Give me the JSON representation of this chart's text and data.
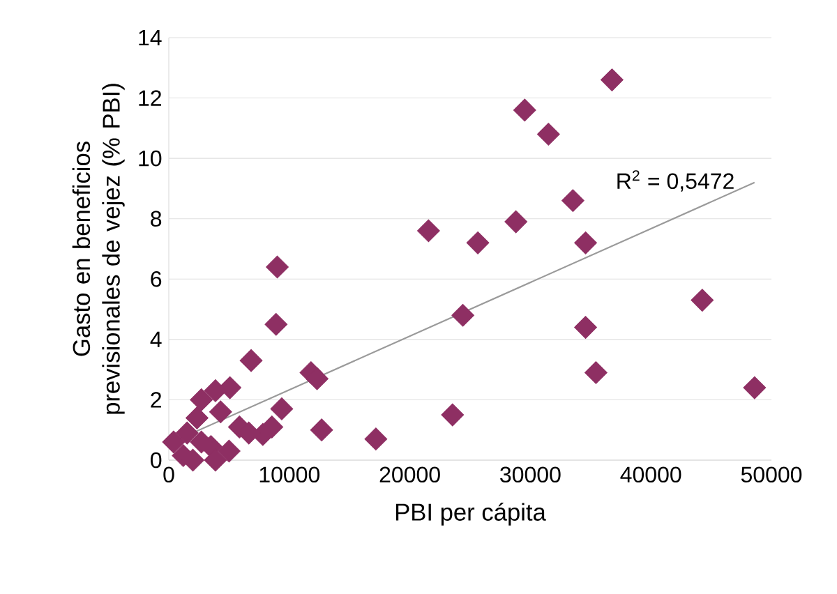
{
  "chart_data": {
    "type": "scatter",
    "xlabel": "PBI per cápita",
    "ylabel": "Gasto en beneficios previsionales de vejez (% PBI)",
    "xlim": [
      0,
      50000
    ],
    "ylim": [
      0,
      14
    ],
    "xticks": [
      0,
      10000,
      20000,
      30000,
      40000,
      50000
    ],
    "yticks": [
      0,
      2,
      4,
      6,
      8,
      10,
      12,
      14
    ],
    "grid": "y",
    "marker": "diamond",
    "series": [
      {
        "color": "#8e2f63",
        "x": [
          36770,
          29530,
          31500,
          33530,
          28800,
          21550,
          25640,
          34580,
          24400,
          34580,
          35440,
          44260,
          48600,
          23540,
          9000,
          8900,
          11800,
          12300,
          6830,
          5070,
          3870,
          2700,
          9370,
          4300,
          12680,
          17180,
          7800,
          400,
          3500,
          3870,
          1200,
          5860,
          2340,
          1520,
          6640,
          8550,
          2700,
          5000,
          2000
        ],
        "values": [
          12.6,
          11.6,
          10.8,
          8.6,
          7.9,
          7.6,
          7.2,
          7.2,
          4.8,
          4.4,
          2.9,
          5.3,
          2.4,
          1.5,
          6.4,
          4.5,
          2.9,
          2.7,
          3.3,
          2.4,
          2.3,
          2.0,
          1.7,
          1.6,
          1.0,
          0.7,
          0.85,
          0.6,
          0.45,
          0.0,
          0.15,
          1.1,
          1.4,
          0.9,
          0.9,
          1.1,
          0.6,
          0.3,
          0.0
        ]
      },
      {
        "type": "line",
        "color": "#9a9a9a",
        "marker": "none",
        "x": [
          0,
          48600
        ],
        "values": [
          0.55,
          9.2
        ]
      }
    ],
    "annotations": [
      "R$^{2}$ = 0,5472"
    ]
  }
}
